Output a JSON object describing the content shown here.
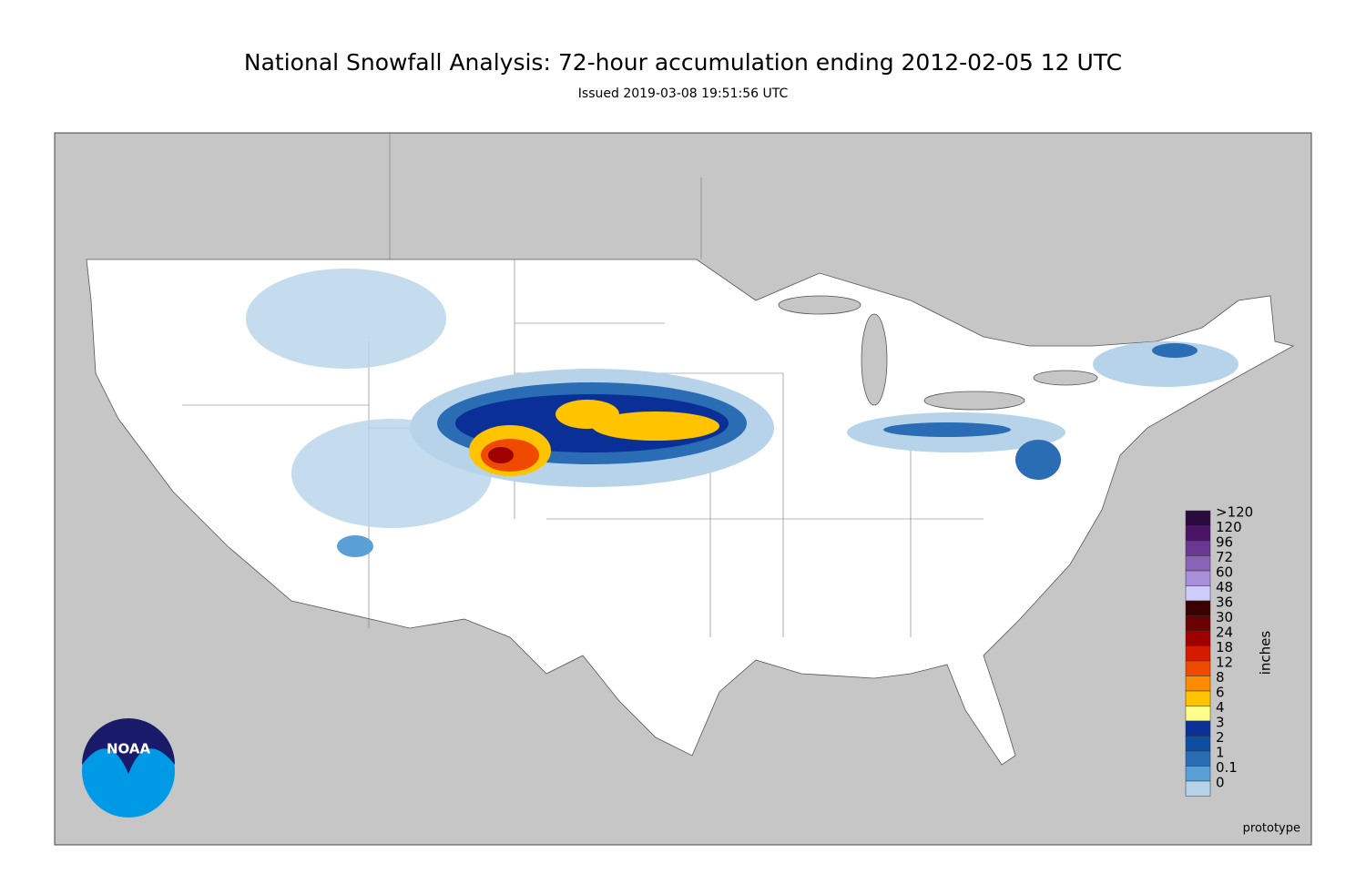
{
  "header": {
    "title": "National Snowfall Analysis: 72-hour accumulation ending 2012-02-05 12 UTC",
    "subtitle": "Issued 2019-03-08 19:51:56 UTC"
  },
  "legend": {
    "title": "inches",
    "items": [
      {
        "label": ">120",
        "color": "#2b0a3d"
      },
      {
        "label": "120",
        "color": "#4a1566"
      },
      {
        "label": "96",
        "color": "#6b3795"
      },
      {
        "label": "72",
        "color": "#8a62b8"
      },
      {
        "label": "60",
        "color": "#a98ed9"
      },
      {
        "label": "48",
        "color": "#cdccfb"
      },
      {
        "label": "36",
        "color": "#3a0000"
      },
      {
        "label": "30",
        "color": "#6b0000"
      },
      {
        "label": "24",
        "color": "#9e0000"
      },
      {
        "label": "18",
        "color": "#d51a00"
      },
      {
        "label": "12",
        "color": "#f04a00"
      },
      {
        "label": "8",
        "color": "#ff8c00"
      },
      {
        "label": "6",
        "color": "#ffc300"
      },
      {
        "label": "4",
        "color": "#ffff8c"
      },
      {
        "label": "3",
        "color": "#0a2f96"
      },
      {
        "label": "2",
        "color": "#0d4da2"
      },
      {
        "label": "1",
        "color": "#2a6db4"
      },
      {
        "label": "0.1",
        "color": "#5aa0d6"
      },
      {
        "label": "0",
        "color": "#b7d3ea"
      }
    ]
  },
  "footer": {
    "note": "prototype"
  },
  "logo": {
    "text": "NOAA"
  }
}
